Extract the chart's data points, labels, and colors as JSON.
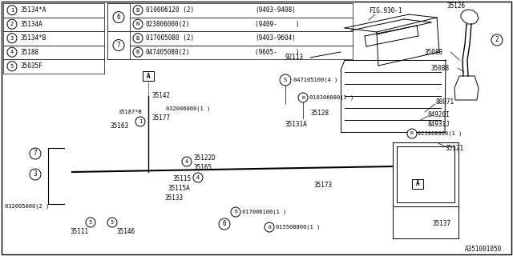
{
  "bg_color": "#ffffff",
  "fig_ref": "A351001050",
  "parts_table_left": [
    [
      "1",
      "35134*A"
    ],
    [
      "2",
      "35134A"
    ],
    [
      "3",
      "35134*B"
    ],
    [
      "4",
      "35188"
    ],
    [
      "5",
      "35035F"
    ]
  ],
  "parts_table_right": [
    [
      "6",
      "B",
      "010006120 (2)",
      "(9403-9408)"
    ],
    [
      "",
      "N",
      "023806000(2)",
      "(9409-     )"
    ],
    [
      "7",
      "B",
      "017005080 (2)",
      "(9403-9604)"
    ],
    [
      "",
      "B",
      "047405080(2)",
      "(9605-     )"
    ]
  ]
}
